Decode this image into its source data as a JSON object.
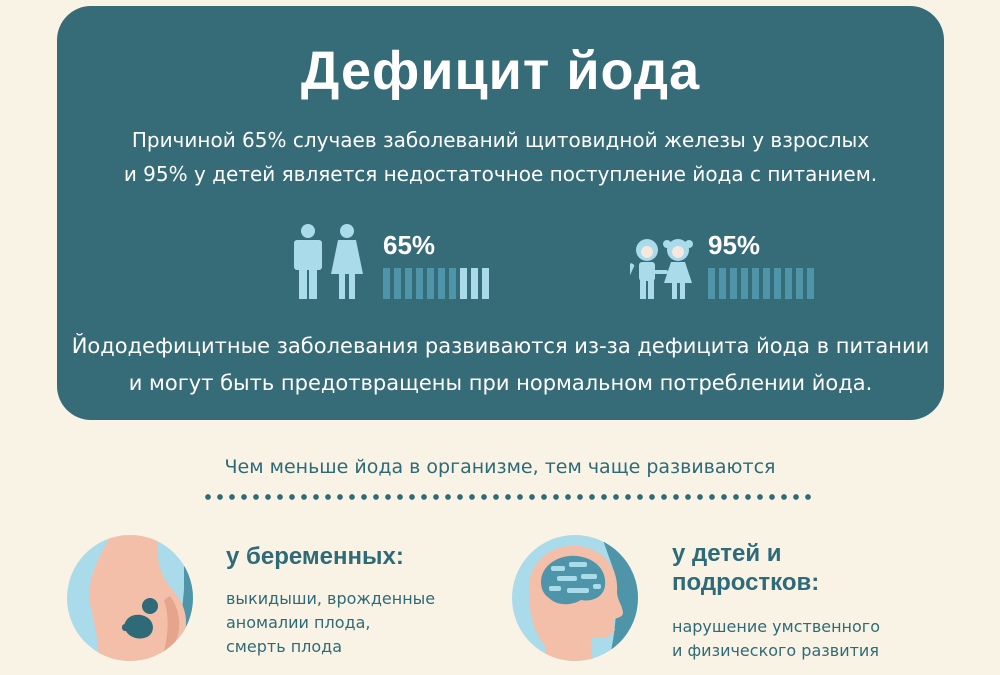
{
  "header": {
    "title": "Дефицит йода",
    "intro_lines": [
      "Причиной 65% случаев заболеваний щитовидной железы у взрослых",
      "и 95% у детей является недостаточное поступление йода с питанием."
    ]
  },
  "stats": [
    {
      "label": "65%",
      "value": 0.65,
      "icon": "adults-icon"
    },
    {
      "label": "95%",
      "value": 0.95,
      "icon": "children-icon"
    }
  ],
  "bottom_lines": [
    "Йододефицитные заболевания развиваются из-за дефицита йода в питании",
    "и могут быть предотвращены при нормальном потреблении йода."
  ],
  "lead_text": "Чем меньше йода в организме, тем чаще развиваются",
  "sections": [
    {
      "title_lines": [
        "у беременных:"
      ],
      "desc_lines": [
        "выкидыши, врожденные",
        "аномалии плода,",
        "смерть плода"
      ],
      "icon": "pregnant-woman-icon"
    },
    {
      "title_lines": [
        "у детей и",
        "подростков:"
      ],
      "desc_lines": [
        "нарушение умственного",
        "и физического развития"
      ],
      "icon": "brain-head-icon"
    }
  ],
  "colors": {
    "panel": "#366b78",
    "background": "#f8f3e4",
    "accent_light": "#a9dbea",
    "accent_mid": "#4f95aa",
    "skin": "#f3bfa9",
    "text_dark": "#2f6a78"
  }
}
